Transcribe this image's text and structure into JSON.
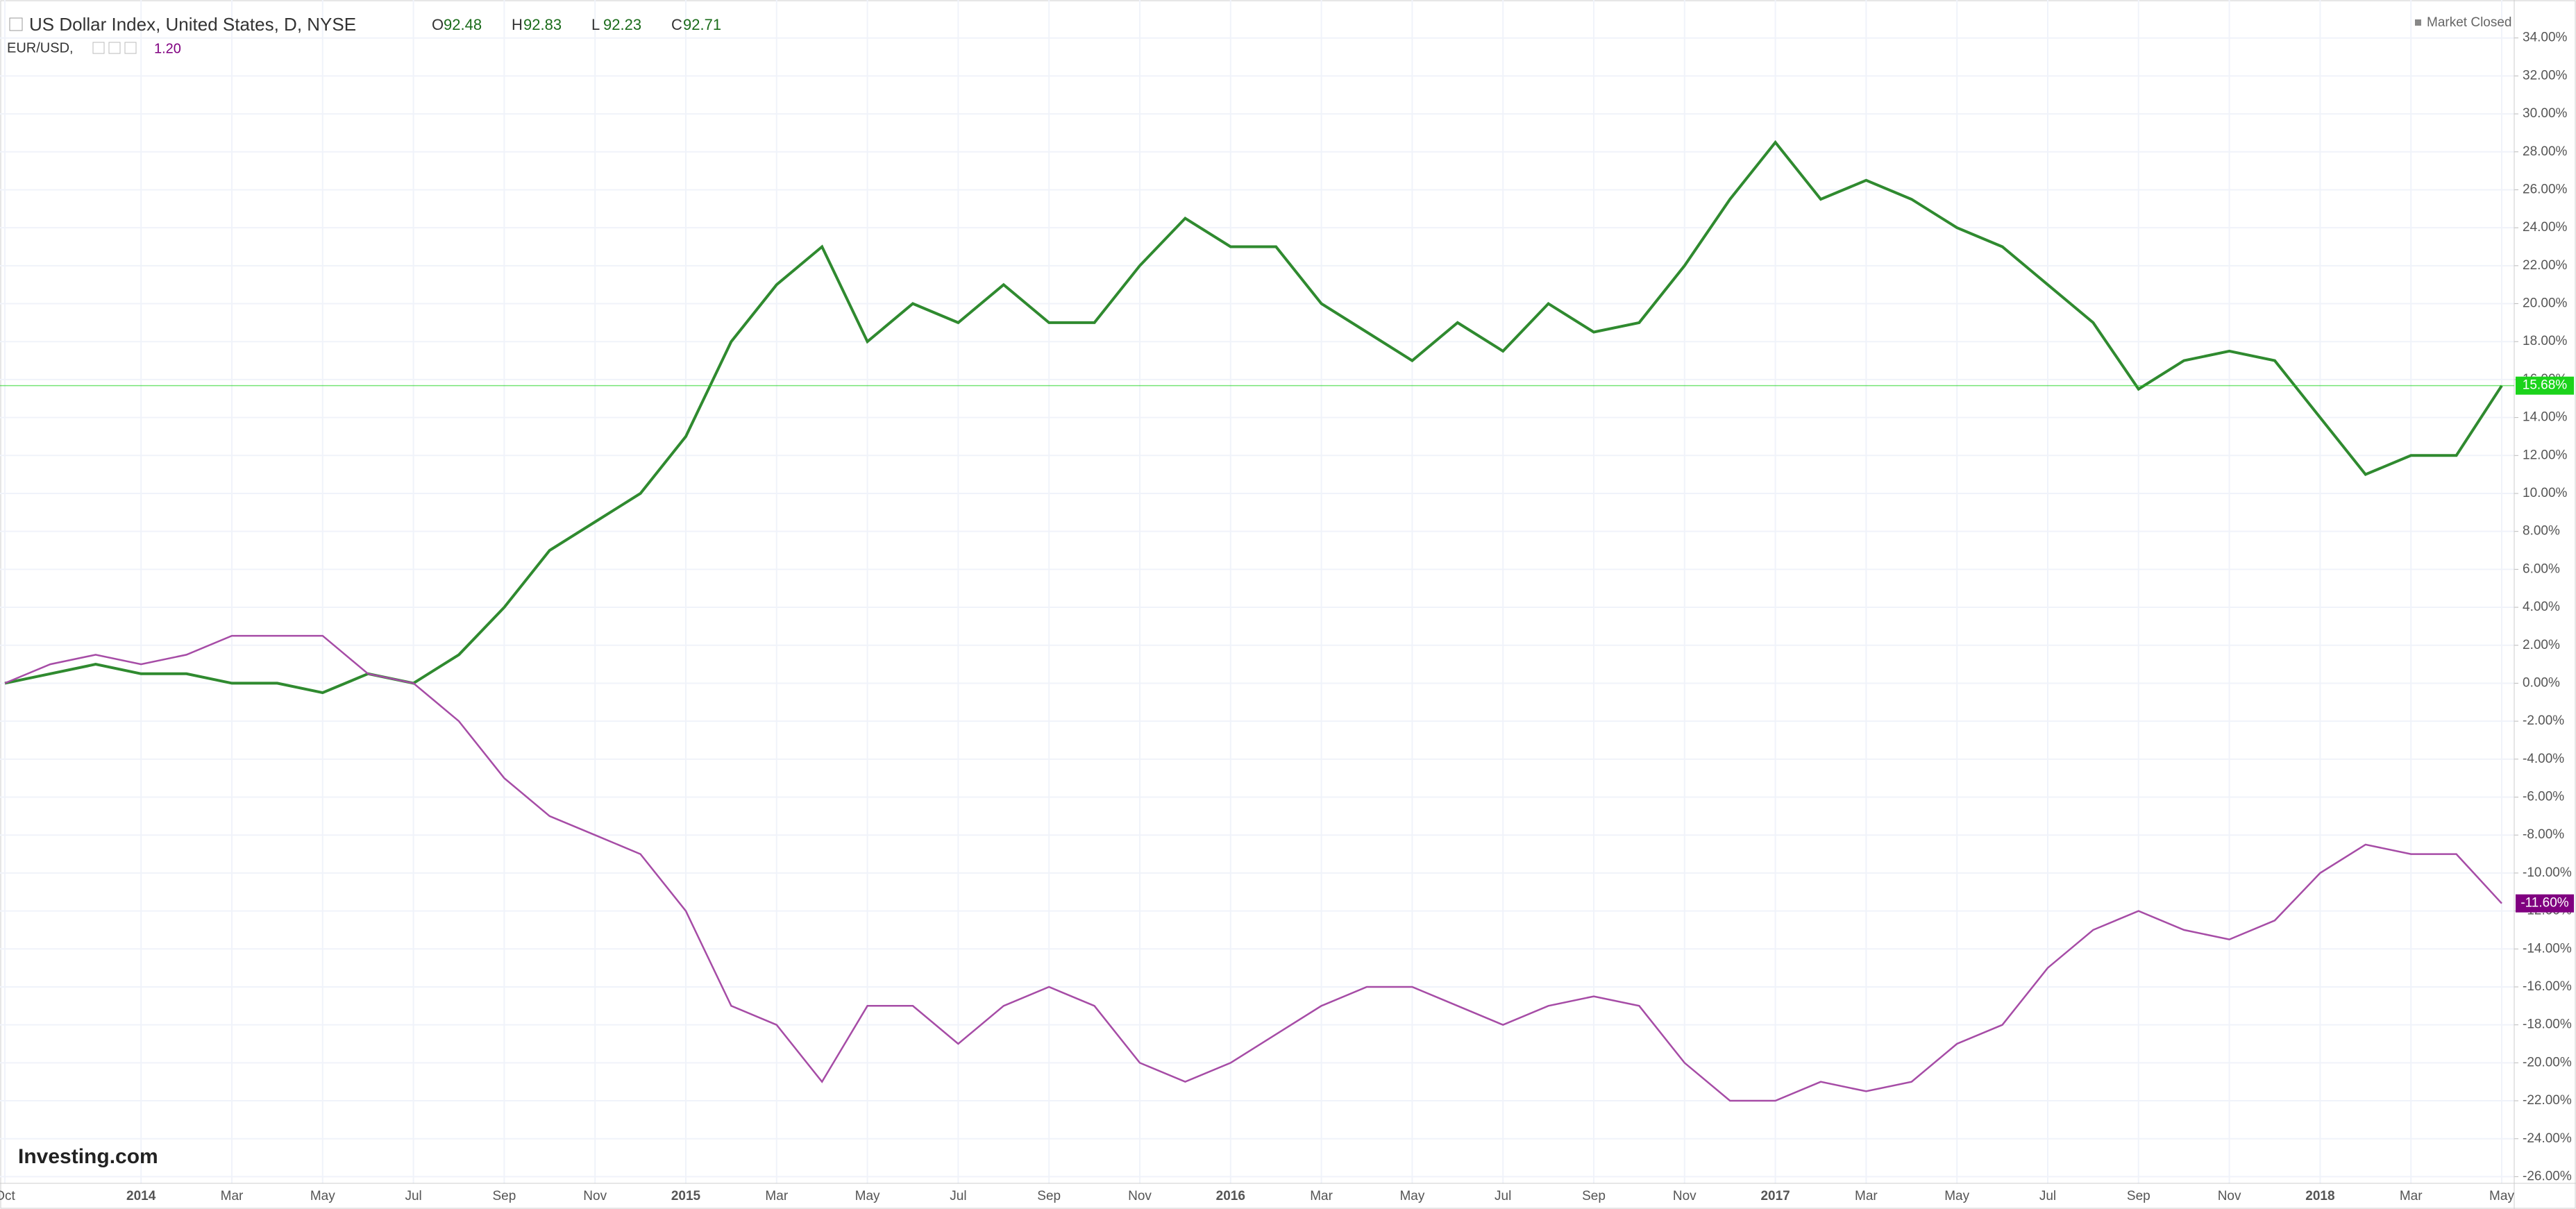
{
  "chart_data": {
    "type": "line",
    "title": "US Dollar Index, United States, D, NYSE",
    "ohlc": [
      {
        "label": "O",
        "value": 92.48
      },
      {
        "label": "H",
        "value": 92.83
      },
      {
        "label": "L",
        "value": 92.23
      },
      {
        "label": "C",
        "value": 92.71
      }
    ],
    "compare_symbol": "EUR/USD,",
    "compare_price": "1.20",
    "status": "Market Closed",
    "brand": "Investing.com",
    "categories": [
      "Oct",
      null,
      null,
      "2014",
      null,
      "Mar",
      null,
      "May",
      null,
      "Jul",
      null,
      "Sep",
      null,
      "Nov",
      null,
      "2015",
      null,
      "Mar",
      null,
      "May",
      null,
      "Jul",
      null,
      "Sep",
      null,
      "Nov",
      null,
      "2016",
      null,
      "Mar",
      null,
      "May",
      null,
      "Jul",
      null,
      "Sep",
      null,
      "Nov",
      null,
      "2017",
      null,
      "Mar",
      null,
      "May",
      null,
      "Jul",
      null,
      "Sep",
      null,
      "Nov",
      null,
      "2018",
      null,
      "Mar",
      null,
      "May"
    ],
    "series": [
      {
        "name": "US Dollar Index",
        "color": "#2f8a2f",
        "label_color": "#1bd31b",
        "values": [
          0,
          0.5,
          1,
          0.5,
          0.5,
          0,
          0,
          -0.5,
          0.5,
          0,
          1.5,
          4,
          7,
          8.5,
          10,
          13,
          18,
          21,
          23,
          18,
          20,
          19,
          21,
          19,
          19,
          22,
          24.5,
          23,
          23,
          20,
          18.5,
          17,
          19,
          17.5,
          20,
          18.5,
          19,
          22,
          25.5,
          28.5,
          25.5,
          26.5,
          25.5,
          24,
          23,
          21,
          19,
          15.5,
          17,
          17.5,
          17,
          14,
          11,
          12,
          12,
          15.68
        ],
        "value_labels": [
          null,
          null,
          null,
          null,
          null,
          null,
          null,
          null,
          null,
          null,
          null,
          null,
          null,
          null,
          null,
          null,
          null,
          null,
          null,
          null,
          null,
          null,
          null,
          null,
          null,
          null,
          null,
          null,
          null,
          null,
          null,
          null,
          null,
          null,
          null,
          null,
          null,
          null,
          null,
          null,
          null,
          null,
          null,
          null,
          null,
          null,
          null,
          null,
          null,
          null,
          null,
          null,
          null,
          null,
          null,
          "15.68%"
        ]
      },
      {
        "name": "EUR/USD",
        "color": "#a64ca6",
        "label_color": "#800080",
        "values": [
          0,
          1,
          1.5,
          1,
          1.5,
          2.5,
          2.5,
          2.5,
          0.5,
          0,
          -2,
          -5,
          -7,
          -8,
          -9,
          -12,
          -17,
          -18,
          -21,
          -17,
          -17,
          -19,
          -17,
          -16,
          -17,
          -20,
          -21,
          -20,
          -18.5,
          -17,
          -16,
          -16,
          -17,
          -18,
          -17,
          -16.5,
          -17,
          -20,
          -22,
          -22,
          -21,
          -21.5,
          -21,
          -19,
          -18,
          -15,
          -13,
          -12,
          -13,
          -13.5,
          -12.5,
          -10,
          -8.5,
          -9,
          -9,
          -11.6
        ],
        "value_labels": [
          null,
          null,
          null,
          null,
          null,
          null,
          null,
          null,
          null,
          null,
          null,
          null,
          null,
          null,
          null,
          null,
          null,
          null,
          null,
          null,
          null,
          null,
          null,
          null,
          null,
          null,
          null,
          null,
          null,
          null,
          null,
          null,
          null,
          null,
          null,
          null,
          null,
          null,
          null,
          null,
          null,
          null,
          null,
          null,
          null,
          null,
          null,
          null,
          null,
          null,
          null,
          null,
          null,
          null,
          null,
          "-11.60%"
        ]
      }
    ],
    "ylim": [
      -26.35,
      36
    ],
    "yticks": [
      {
        "value": 34,
        "label": "34.00%"
      },
      {
        "value": 32,
        "label": "32.00%"
      },
      {
        "value": 30,
        "label": "30.00%"
      },
      {
        "value": 28,
        "label": "28.00%"
      },
      {
        "value": 26,
        "label": "26.00%"
      },
      {
        "value": 24,
        "label": "24.00%"
      },
      {
        "value": 22,
        "label": "22.00%"
      },
      {
        "value": 20,
        "label": "20.00%"
      },
      {
        "value": 18,
        "label": "18.00%"
      },
      {
        "value": 16,
        "label": "16.00%"
      },
      {
        "value": 14,
        "label": "14.00%"
      },
      {
        "value": 12,
        "label": "12.00%"
      },
      {
        "value": 10,
        "label": "10.00%"
      },
      {
        "value": 8,
        "label": "8.00%"
      },
      {
        "value": 6,
        "label": "6.00%"
      },
      {
        "value": 4,
        "label": "4.00%"
      },
      {
        "value": 2,
        "label": "2.00%"
      },
      {
        "value": 0,
        "label": "0.00%"
      },
      {
        "value": -2,
        "label": "-2.00%"
      },
      {
        "value": -4,
        "label": "-4.00%"
      },
      {
        "value": -6,
        "label": "-6.00%"
      },
      {
        "value": -8,
        "label": "-8.00%"
      },
      {
        "value": -10,
        "label": "-10.00%"
      },
      {
        "value": -12,
        "label": "-12.00%"
      },
      {
        "value": -14,
        "label": "-14.00%"
      },
      {
        "value": -16,
        "label": "-16.00%"
      },
      {
        "value": -18,
        "label": "-18.00%"
      },
      {
        "value": -20,
        "label": "-20.00%"
      },
      {
        "value": -22,
        "label": "-22.00%"
      },
      {
        "value": -24,
        "label": "-24.00%"
      },
      {
        "value": -26,
        "label": "-26.00%"
      }
    ],
    "grid": true
  }
}
